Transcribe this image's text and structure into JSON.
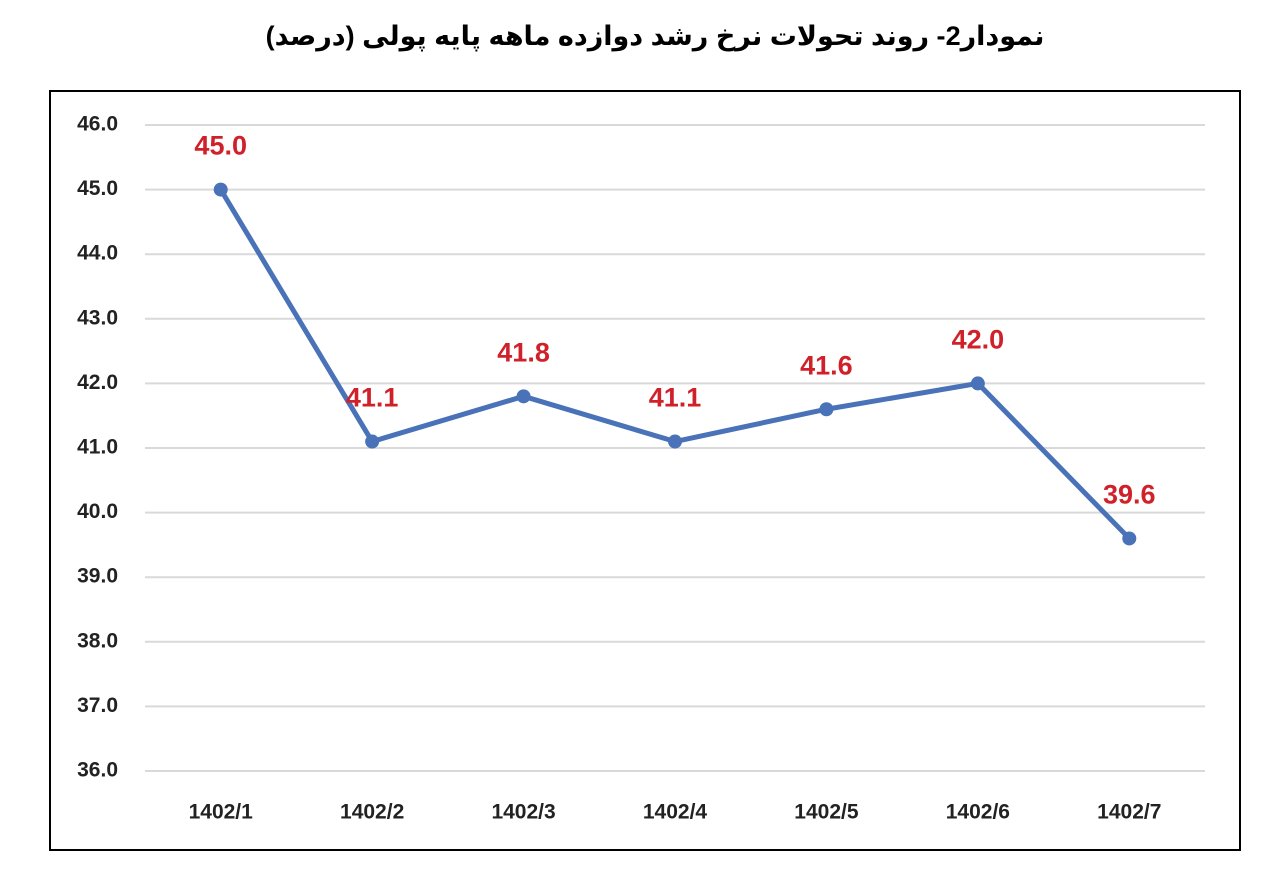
{
  "chart_data": {
    "type": "line",
    "title": "نمودار2- روند تحولات نرخ رشد دوازده ماهه پایه پولی (درصد)",
    "categories": [
      "1402/1",
      "1402/2",
      "1402/3",
      "1402/4",
      "1402/5",
      "1402/6",
      "1402/7"
    ],
    "series": [
      {
        "color": "#4a72b8",
        "label_color": "#d0202a",
        "values": [
          45.0,
          41.1,
          41.8,
          41.1,
          41.6,
          42.0,
          39.6
        ],
        "value_labels": [
          "45.0",
          "41.1",
          "41.8",
          "41.1",
          "41.6",
          "42.0",
          "39.6"
        ]
      }
    ],
    "ylim": [
      36,
      46
    ],
    "yticks": [
      {
        "value": 36,
        "label": "36.0"
      },
      {
        "value": 37,
        "label": "37.0"
      },
      {
        "value": 38,
        "label": "38.0"
      },
      {
        "value": 39,
        "label": "39.0"
      },
      {
        "value": 40,
        "label": "40.0"
      },
      {
        "value": 41,
        "label": "41.0"
      },
      {
        "value": 42,
        "label": "42.0"
      },
      {
        "value": 43,
        "label": "43.0"
      },
      {
        "value": 44,
        "label": "44.0"
      },
      {
        "value": 45,
        "label": "45.0"
      },
      {
        "value": 46,
        "label": "46.0"
      }
    ],
    "grid": true
  }
}
